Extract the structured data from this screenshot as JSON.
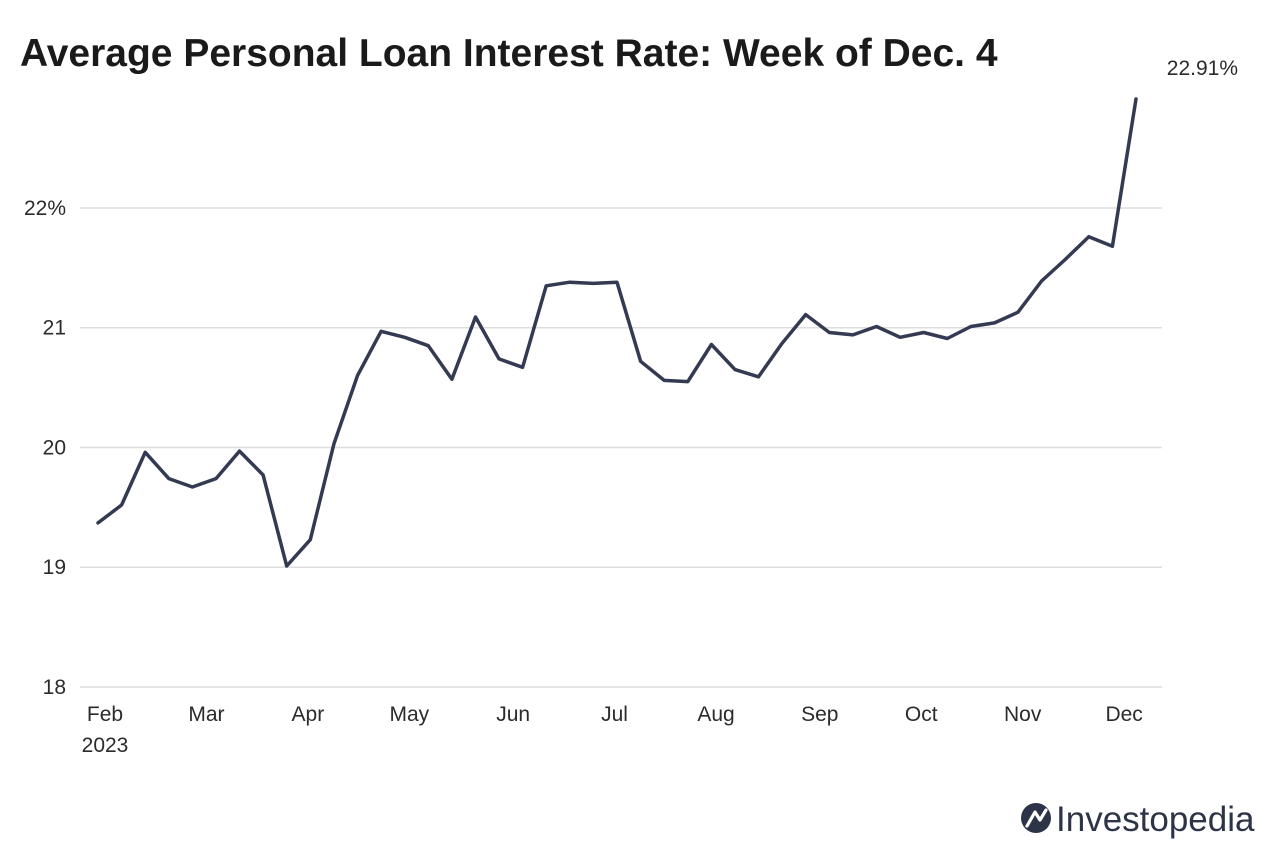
{
  "chart_data": {
    "type": "line",
    "title": "Average Personal Loan Interest Rate: Week of Dec. 4",
    "ylim": [
      18,
      22.91
    ],
    "y_ticks": [
      {
        "value": 22,
        "label": "22%"
      },
      {
        "value": 21,
        "label": "21"
      },
      {
        "value": 20,
        "label": "20"
      },
      {
        "value": 19,
        "label": "19"
      },
      {
        "value": 18,
        "label": "18"
      }
    ],
    "x_ticks": [
      {
        "index": 0,
        "label": "Feb",
        "sublabel": "2023"
      },
      {
        "index": 4.3,
        "label": "Mar"
      },
      {
        "index": 8.6,
        "label": "Apr"
      },
      {
        "index": 12.9,
        "label": "May"
      },
      {
        "index": 17.3,
        "label": "Jun"
      },
      {
        "index": 21.6,
        "label": "Jul"
      },
      {
        "index": 25.9,
        "label": "Aug"
      },
      {
        "index": 30.3,
        "label": "Sep"
      },
      {
        "index": 34.6,
        "label": "Oct"
      },
      {
        "index": 38.9,
        "label": "Nov"
      },
      {
        "index": 43.2,
        "label": "Dec"
      }
    ],
    "end_label": "22.91%",
    "grid": true,
    "series": [
      {
        "color": "#333a52",
        "values": [
          19.37,
          19.52,
          19.96,
          19.74,
          19.67,
          19.74,
          19.97,
          19.77,
          19.01,
          19.23,
          20.03,
          20.6,
          20.97,
          20.92,
          20.85,
          20.57,
          21.09,
          20.74,
          20.67,
          21.35,
          21.38,
          21.37,
          21.38,
          20.72,
          20.56,
          20.55,
          20.86,
          20.65,
          20.59,
          20.87,
          21.11,
          20.96,
          20.94,
          21.01,
          20.92,
          20.96,
          20.91,
          21.01,
          21.04,
          21.13,
          21.39,
          21.57,
          21.76,
          21.68,
          22.91
        ]
      }
    ]
  },
  "brand": {
    "name": "Investopedia",
    "color": "#2d3447"
  }
}
